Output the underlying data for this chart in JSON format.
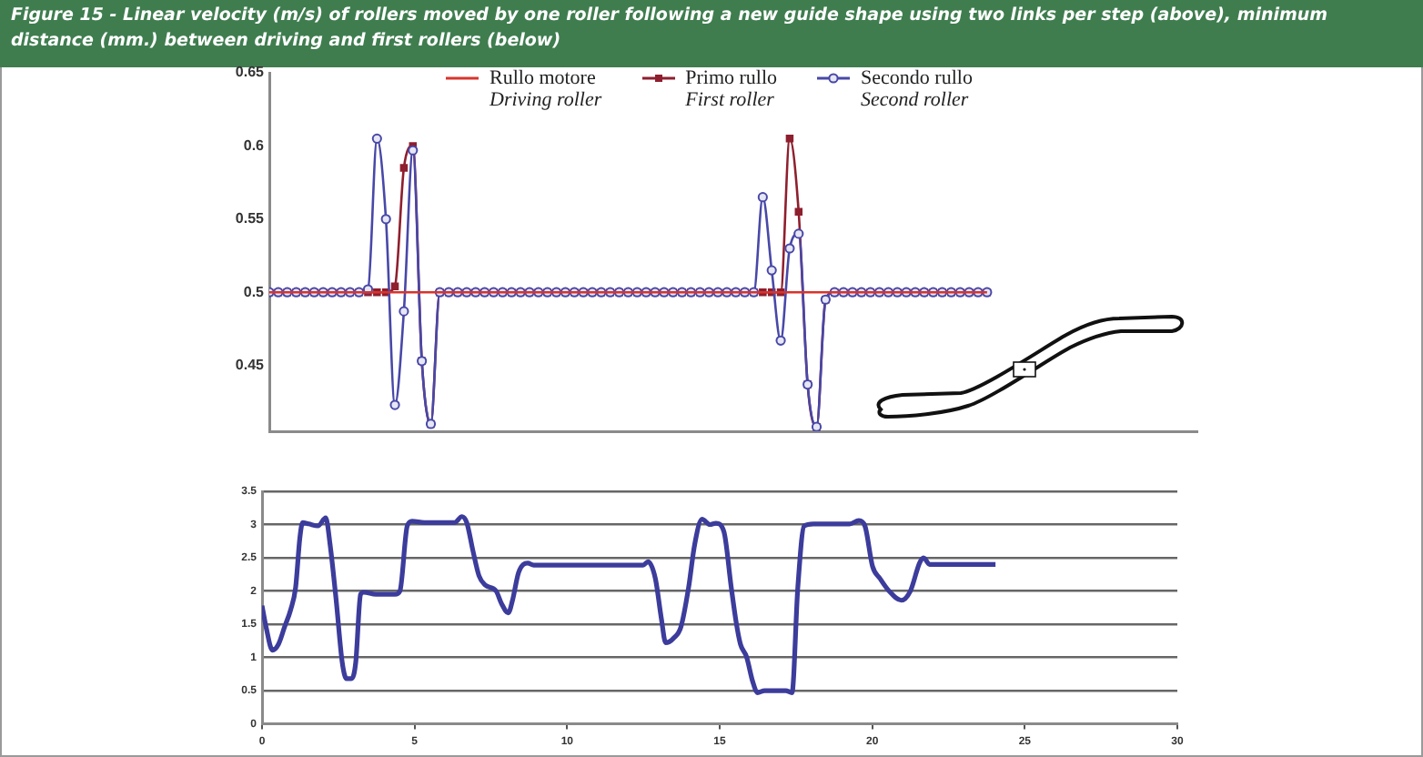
{
  "chart_data": [
    {
      "type": "line",
      "title": "Figure 15 - Linear velocity (m/s) of rollers moved by one roller following a new guide shape using two links per step (above), minimum distance (mm.) between driving and first rollers (below)",
      "categories": [
        null,
        null,
        null,
        null,
        null,
        null,
        null,
        null,
        null,
        null,
        null,
        null,
        null,
        null,
        null,
        null,
        null,
        null,
        null,
        null,
        null,
        null,
        null,
        null,
        null,
        null,
        null,
        null,
        null,
        null,
        null,
        null,
        null,
        null,
        null,
        null,
        null,
        null,
        null,
        null,
        null,
        null,
        null,
        null,
        null,
        null,
        null,
        null,
        null,
        null,
        null,
        null,
        null,
        null,
        null,
        null,
        null,
        null,
        null,
        null,
        null,
        null,
        null,
        null,
        null,
        null,
        null,
        null,
        null,
        null,
        null,
        null,
        null,
        null,
        null,
        null,
        null,
        null,
        null,
        null,
        null
      ],
      "ylim": [
        0.405,
        0.65
      ],
      "yticks": [
        0.45,
        0.5,
        0.55,
        0.6,
        0.65
      ],
      "grid": false,
      "legend": "top",
      "tick_labels": "y",
      "series": [
        {
          "name": "Rullo motore\nDriving roller",
          "color": "#d8342c",
          "marker": "none",
          "values": [
            0.5,
            0.5,
            0.5,
            0.5,
            0.5,
            0.5,
            0.5,
            0.5,
            0.5,
            0.5,
            0.5,
            0.5,
            0.5,
            0.5,
            0.5,
            0.5,
            0.5,
            0.5,
            0.5,
            0.5,
            0.5,
            0.5,
            0.5,
            0.5,
            0.5,
            0.5,
            0.5,
            0.5,
            0.5,
            0.5,
            0.5,
            0.5,
            0.5,
            0.5,
            0.5,
            0.5,
            0.5,
            0.5,
            0.5,
            0.5,
            0.5,
            0.5,
            0.5,
            0.5,
            0.5,
            0.5,
            0.5,
            0.5,
            0.5,
            0.5,
            0.5,
            0.5,
            0.5,
            0.5,
            0.5,
            0.5,
            0.5,
            0.5,
            0.5,
            0.5,
            0.5,
            0.5,
            0.5,
            0.5,
            0.5,
            0.5,
            0.5,
            0.5,
            0.5,
            0.5,
            0.5,
            0.5,
            0.5,
            0.5,
            0.5,
            0.5,
            0.5,
            0.5,
            0.5,
            0.5,
            0.5
          ]
        },
        {
          "name": "Primo rullo\nFirst roller",
          "color": "#8e1f2e",
          "marker": "square",
          "values": [
            0.5,
            0.5,
            0.5,
            0.5,
            0.5,
            0.5,
            0.5,
            0.5,
            0.5,
            0.5,
            0.5,
            0.5,
            0.5,
            0.5,
            0.504,
            0.585,
            0.6,
            0.453,
            0.41,
            0.5,
            0.5,
            0.5,
            0.5,
            0.5,
            0.5,
            0.5,
            0.5,
            0.5,
            0.5,
            0.5,
            0.5,
            0.5,
            0.5,
            0.5,
            0.5,
            0.5,
            0.5,
            0.5,
            0.5,
            0.5,
            0.5,
            0.5,
            0.5,
            0.5,
            0.5,
            0.5,
            0.5,
            0.5,
            0.5,
            0.5,
            0.5,
            0.5,
            0.5,
            0.5,
            0.5,
            0.5,
            0.5,
            0.5,
            0.605,
            0.555,
            0.437,
            0.408,
            0.495,
            0.5,
            0.5,
            0.5,
            0.5,
            0.5,
            0.5,
            0.5,
            0.5,
            0.5,
            0.5,
            0.5,
            0.5,
            0.5,
            0.5,
            0.5,
            0.5,
            0.5,
            0.5
          ]
        },
        {
          "name": "Secondo rullo\nSecond roller",
          "color": "#4848a8",
          "marker": "circle",
          "values": [
            0.5,
            0.5,
            0.5,
            0.5,
            0.5,
            0.5,
            0.5,
            0.5,
            0.5,
            0.5,
            0.5,
            0.502,
            0.605,
            0.55,
            0.423,
            0.487,
            0.597,
            0.453,
            0.41,
            0.5,
            0.5,
            0.5,
            0.5,
            0.5,
            0.5,
            0.5,
            0.5,
            0.5,
            0.5,
            0.5,
            0.5,
            0.5,
            0.5,
            0.5,
            0.5,
            0.5,
            0.5,
            0.5,
            0.5,
            0.5,
            0.5,
            0.5,
            0.5,
            0.5,
            0.5,
            0.5,
            0.5,
            0.5,
            0.5,
            0.5,
            0.5,
            0.5,
            0.5,
            0.5,
            0.5,
            0.565,
            0.515,
            0.467,
            0.53,
            0.54,
            0.437,
            0.408,
            0.495,
            0.5,
            0.5,
            0.5,
            0.5,
            0.5,
            0.5,
            0.5,
            0.5,
            0.5,
            0.5,
            0.5,
            0.5,
            0.5,
            0.5,
            0.5,
            0.5,
            0.5,
            0.5
          ]
        }
      ]
    },
    {
      "type": "line",
      "xlim": [
        0,
        30
      ],
      "xticks": [
        0,
        5,
        10,
        15,
        20,
        25,
        30
      ],
      "ylim": [
        0,
        3.5
      ],
      "yticks": [
        0,
        0.5,
        1,
        1.5,
        2,
        2.5,
        3,
        3.5
      ],
      "grid": "y",
      "legend": false,
      "series": [
        {
          "color": "#3c3c9c",
          "marker": "none",
          "x": [
            0,
            0.14,
            0.34,
            0.54,
            0.74,
            0.94,
            1.1,
            1.24,
            1.33,
            1.53,
            1.83,
            2.09,
            2.23,
            2.43,
            2.63,
            2.77,
            2.93,
            3.07,
            3.23,
            3.33,
            3.73,
            4.36,
            4.52,
            4.76,
            4.92,
            5.32,
            6.31,
            6.55,
            6.71,
            6.91,
            7.11,
            7.31,
            7.67,
            7.85,
            8.07,
            8.21,
            8.41,
            8.71,
            8.9,
            12.49,
            12.65,
            12.89,
            13.09,
            13.23,
            13.49,
            13.73,
            13.98,
            14.18,
            14.42,
            14.68,
            14.88,
            15.14,
            15.38,
            15.54,
            15.68,
            15.88,
            16.08,
            16.24,
            16.47,
            17.17,
            17.37,
            17.56,
            17.77,
            18.07,
            19.26,
            19.56,
            19.76,
            20.01,
            20.25,
            20.55,
            20.95,
            21.25,
            21.55,
            21.68,
            21.88,
            24.04
          ],
          "values": [
            1.78,
            1.44,
            1.11,
            1.2,
            1.46,
            1.72,
            2.05,
            2.8,
            3.03,
            3.01,
            2.98,
            3.1,
            2.7,
            1.86,
            0.92,
            0.68,
            0.68,
            0.92,
            1.95,
            1.98,
            1.95,
            1.95,
            2.0,
            2.98,
            3.05,
            3.03,
            3.03,
            3.12,
            3.03,
            2.61,
            2.23,
            2.09,
            2.0,
            1.81,
            1.67,
            1.86,
            2.28,
            2.42,
            2.39,
            2.39,
            2.44,
            2.19,
            1.58,
            1.22,
            1.29,
            1.46,
            2.05,
            2.7,
            3.08,
            3.0,
            3.02,
            2.89,
            2.05,
            1.53,
            1.2,
            1.01,
            0.64,
            0.47,
            0.5,
            0.5,
            0.47,
            2.05,
            2.98,
            3.01,
            3.01,
            3.06,
            2.98,
            2.37,
            2.19,
            2.0,
            1.86,
            2.0,
            2.42,
            2.5,
            2.4,
            2.4
          ]
        }
      ]
    }
  ]
}
